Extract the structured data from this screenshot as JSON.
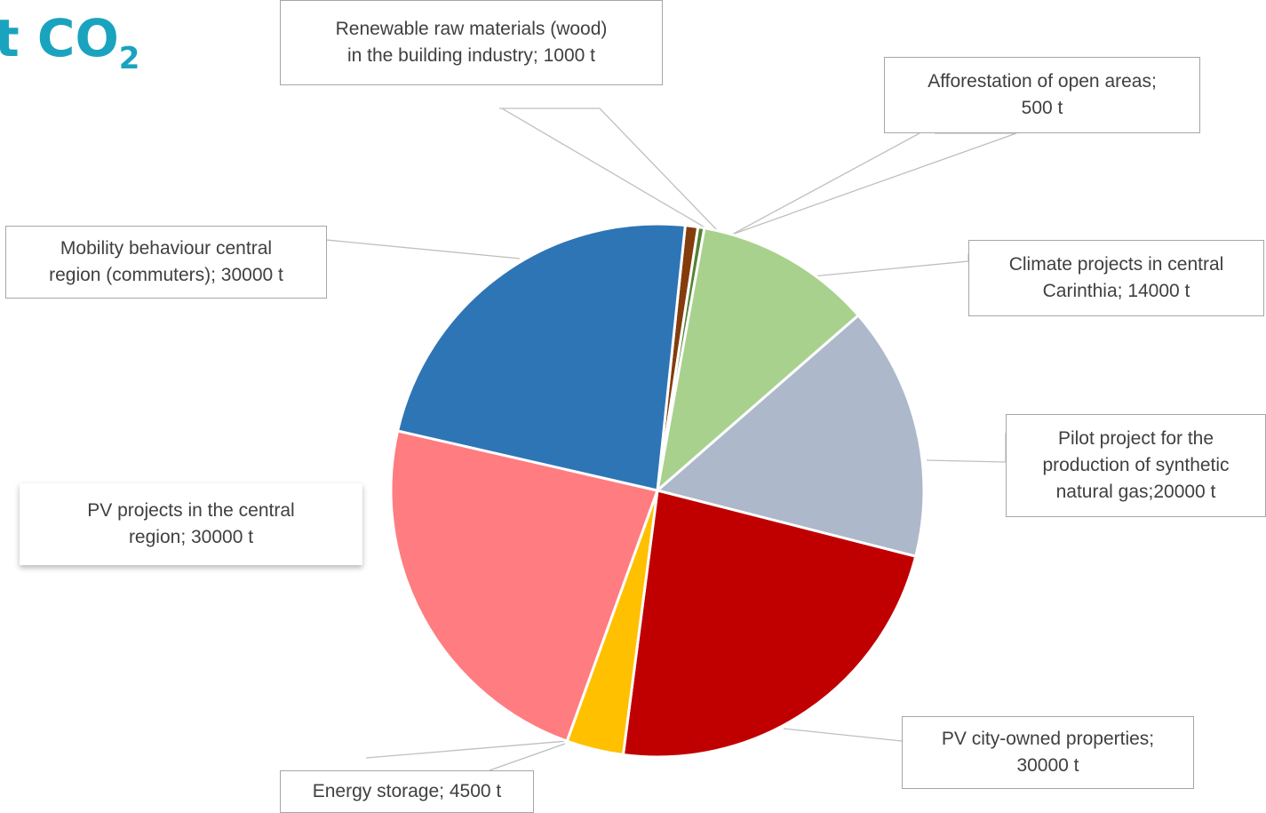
{
  "title_fragment": {
    "text": "t CO",
    "subscript": "2"
  },
  "chart_data": {
    "type": "pie",
    "unit": "t",
    "slices": [
      {
        "label": "Renewable raw materials (wood) in the building industry; 1000 t",
        "value": 1000,
        "color": "#843c0c"
      },
      {
        "label": "Afforestation of open areas; 500 t",
        "value": 500,
        "color": "#548235"
      },
      {
        "label": "Climate projects in central Carinthia; 14000 t",
        "value": 14000,
        "color": "#a9d18e"
      },
      {
        "label": "Pilot project for the production of synthetic natural gas;20000 t",
        "value": 20000,
        "color": "#adb9ca"
      },
      {
        "label": "PV city-owned properties; 30000 t",
        "value": 30000,
        "color": "#c00000"
      },
      {
        "label": "Energy storage; 4500 t",
        "value": 4500,
        "color": "#ffc000"
      },
      {
        "label": "PV projects in the central region; 30000 t",
        "value": 30000,
        "color": "#ff7c80"
      },
      {
        "label": "Mobility behaviour central region (commuters); 30000 t",
        "value": 30000,
        "color": "#2e75b6"
      }
    ]
  },
  "callouts": {
    "wood": {
      "line1": "Renewable raw materials (wood)",
      "line2": "in the building industry; 1000 t"
    },
    "afforestation": {
      "line1": "Afforestation of open areas;",
      "line2": "500 t"
    },
    "climate": {
      "line1": "Climate projects in central",
      "line2": "Carinthia; 14000 t"
    },
    "pilot": {
      "line1": "Pilot project for the",
      "line2": "production of synthetic",
      "line3": "natural gas;20000 t"
    },
    "pv_city": {
      "line1": "PV city-owned properties;",
      "line2": "30000 t"
    },
    "storage": {
      "line1": "Energy storage; 4500 t"
    },
    "pv_region": {
      "line1": "PV projects in the central",
      "line2": "region; 30000 t"
    },
    "mobility": {
      "line1": "Mobility behaviour central",
      "line2": "region (commuters); 30000 t"
    }
  }
}
